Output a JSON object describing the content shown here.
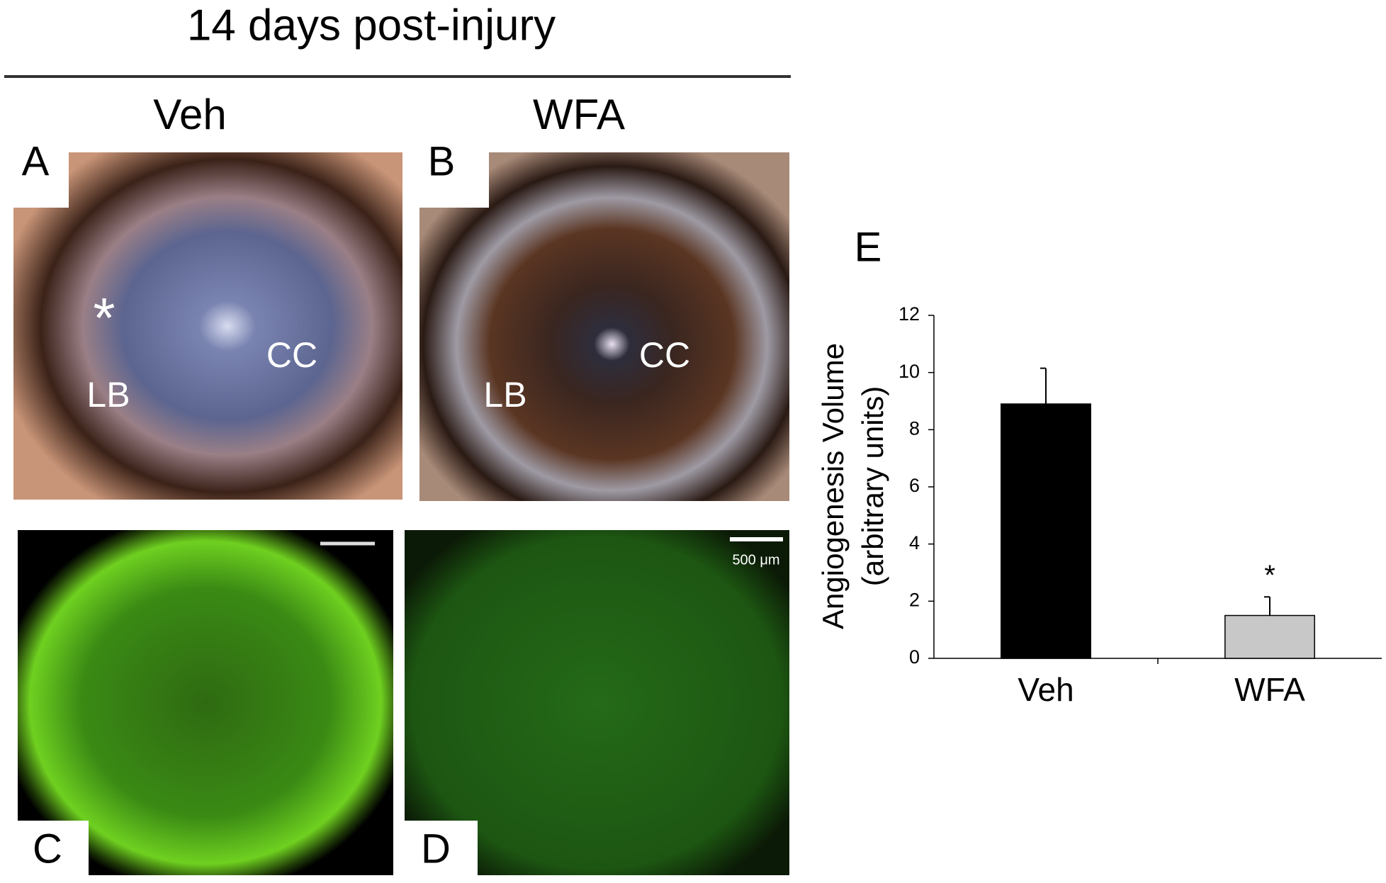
{
  "figure": {
    "title": "14 days post-injury",
    "columns": [
      "Veh",
      "WFA"
    ],
    "panels": {
      "A": {
        "letter": "A",
        "labels": [
          "*",
          "CC",
          "LB"
        ]
      },
      "B": {
        "letter": "B",
        "labels": [
          "CC",
          "LB"
        ]
      },
      "C": {
        "letter": "C"
      },
      "D": {
        "letter": "D",
        "scale_bar": "500 μm"
      },
      "E": {
        "letter": "E"
      }
    }
  },
  "chart_data": {
    "type": "bar",
    "ylabel": [
      "Angiogenesis Volume",
      "(arbitrary units)"
    ],
    "categories": [
      "Veh",
      "WFA"
    ],
    "values": [
      8.9,
      1.5
    ],
    "errors": [
      1.25,
      0.65
    ],
    "colors": [
      "#000000",
      "#c8c8c8"
    ],
    "annotations": [
      null,
      "*"
    ],
    "ylim": [
      0,
      12
    ],
    "yticks": [
      0,
      2,
      4,
      6,
      8,
      10,
      12
    ]
  }
}
